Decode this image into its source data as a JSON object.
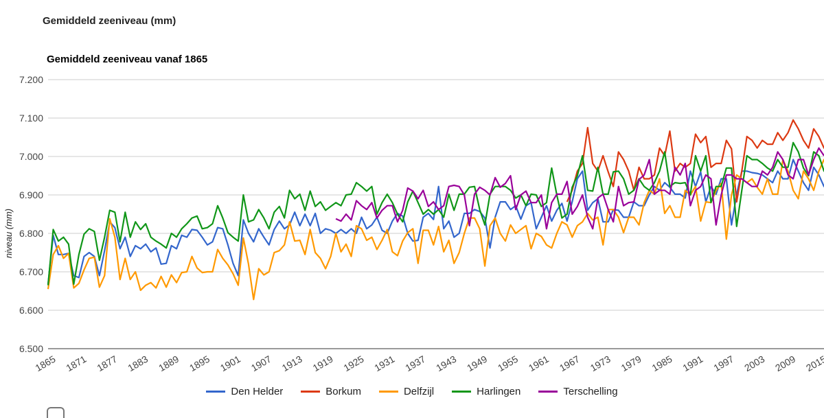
{
  "page": {
    "title": "Gemiddeld zeeniveau (mm)"
  },
  "chart_data": {
    "type": "line",
    "title": "Gemiddeld zeeniveau vanaf 1865",
    "xlabel": "",
    "ylabel": "niveau (mm)",
    "ylim": [
      6.5,
      7.2
    ],
    "xlim": [
      1865,
      2016
    ],
    "yticks": [
      "6.500",
      "6.600",
      "6.700",
      "6.800",
      "6.900",
      "7.000",
      "7.100",
      "7.200"
    ],
    "xticks": [
      "1865",
      "1871",
      "1877",
      "1883",
      "1889",
      "1895",
      "1901",
      "1907",
      "1913",
      "1919",
      "1925",
      "1931",
      "1937",
      "1943",
      "1949",
      "1955",
      "1961",
      "1967",
      "1973",
      "1979",
      "1985",
      "1991",
      "1997",
      "2003",
      "2009",
      "2015"
    ],
    "grid": true,
    "legend_position": "bottom",
    "series": [
      {
        "name": "Den Helder",
        "color": "#3366CC",
        "start": 1865,
        "values": [
          6.668,
          6.795,
          6.745,
          6.745,
          6.748,
          6.69,
          6.685,
          6.74,
          6.75,
          6.74,
          6.69,
          6.755,
          6.83,
          6.815,
          6.76,
          6.79,
          6.74,
          6.768,
          6.76,
          6.772,
          6.752,
          6.762,
          6.72,
          6.722,
          6.768,
          6.76,
          6.795,
          6.79,
          6.81,
          6.808,
          6.79,
          6.77,
          6.778,
          6.815,
          6.812,
          6.77,
          6.722,
          6.69,
          6.835,
          6.8,
          6.778,
          6.812,
          6.79,
          6.77,
          6.81,
          6.832,
          6.812,
          6.822,
          6.855,
          6.82,
          6.85,
          6.82,
          6.852,
          6.8,
          6.812,
          6.808,
          6.8,
          6.81,
          6.8,
          6.812,
          6.8,
          6.842,
          6.812,
          6.822,
          6.842,
          6.808,
          6.8,
          6.832,
          6.852,
          6.845,
          6.8,
          6.78,
          6.782,
          6.842,
          6.852,
          6.836,
          6.922,
          6.812,
          6.832,
          6.79,
          6.8,
          6.852,
          6.852,
          6.862,
          6.857,
          6.84,
          6.762,
          6.842,
          6.882,
          6.882,
          6.862,
          6.872,
          6.837,
          6.872,
          6.88,
          6.812,
          6.842,
          6.872,
          6.832,
          6.86,
          6.878,
          6.832,
          6.882,
          6.942,
          6.962,
          6.86,
          6.88,
          6.89,
          6.83,
          6.83,
          6.862,
          6.86,
          6.842,
          6.842,
          6.882,
          6.872,
          6.872,
          6.9,
          6.922,
          6.912,
          6.932,
          6.92,
          6.902,
          6.902,
          6.892,
          6.962,
          6.922,
          6.96,
          6.882,
          6.922,
          6.902,
          6.942,
          6.942,
          6.822,
          6.902,
          6.962,
          6.962,
          6.958,
          6.956,
          6.952,
          6.942,
          6.932,
          6.962,
          6.942,
          6.942,
          6.992,
          6.962,
          6.932,
          6.912,
          6.972,
          6.952,
          6.922,
          6.962,
          6.982,
          6.962
        ]
      },
      {
        "name": "Borkum",
        "color": "#DC3912",
        "start": 1966,
        "values": [
          6.882,
          6.912,
          6.962,
          6.982,
          7.075,
          6.982,
          6.962,
          7.002,
          6.96,
          6.922,
          7.012,
          6.992,
          6.962,
          6.912,
          6.972,
          6.942,
          6.942,
          6.952,
          7.022,
          7.002,
          7.066,
          6.962,
          6.982,
          6.972,
          6.982,
          7.058,
          7.036,
          7.052,
          6.972,
          6.982,
          6.982,
          7.042,
          7.02,
          6.882,
          6.962,
          7.052,
          7.042,
          7.022,
          7.042,
          7.032,
          7.032,
          7.062,
          7.042,
          7.062,
          7.095,
          7.072,
          7.042,
          7.022,
          7.072,
          7.052,
          7.022,
          7.062,
          7.102,
          7.075
        ]
      },
      {
        "name": "Delfzijl",
        "color": "#FF9900",
        "start": 1865,
        "values": [
          6.655,
          6.745,
          6.768,
          6.735,
          6.748,
          6.658,
          6.67,
          6.705,
          6.735,
          6.738,
          6.66,
          6.69,
          6.838,
          6.79,
          6.68,
          6.735,
          6.68,
          6.7,
          6.652,
          6.665,
          6.672,
          6.658,
          6.688,
          6.66,
          6.692,
          6.672,
          6.698,
          6.7,
          6.74,
          6.71,
          6.698,
          6.7,
          6.7,
          6.758,
          6.735,
          6.718,
          6.695,
          6.665,
          6.788,
          6.72,
          6.628,
          6.708,
          6.692,
          6.7,
          6.75,
          6.755,
          6.77,
          6.83,
          6.78,
          6.782,
          6.745,
          6.81,
          6.75,
          6.735,
          6.708,
          6.74,
          6.8,
          6.752,
          6.772,
          6.74,
          6.82,
          6.812,
          6.782,
          6.79,
          6.758,
          6.782,
          6.81,
          6.752,
          6.742,
          6.78,
          6.802,
          6.812,
          6.722,
          6.808,
          6.808,
          6.77,
          6.818,
          6.752,
          6.782,
          6.722,
          6.75,
          6.8,
          6.84,
          6.84,
          6.812,
          6.715,
          6.82,
          6.84,
          6.8,
          6.78,
          6.822,
          6.8,
          6.81,
          6.82,
          6.76,
          6.8,
          6.792,
          6.77,
          6.762,
          6.8,
          6.83,
          6.822,
          6.79,
          6.82,
          6.83,
          6.852,
          6.835,
          6.842,
          6.77,
          6.862,
          6.862,
          6.842,
          6.802,
          6.842,
          6.842,
          6.822,
          6.88,
          6.912,
          6.902,
          6.942,
          6.852,
          6.872,
          6.842,
          6.842,
          6.912,
          6.9,
          6.922,
          6.832,
          6.882,
          6.88,
          6.912,
          6.93,
          6.785,
          6.9,
          6.952,
          6.942,
          6.932,
          6.942,
          6.92,
          6.902,
          6.942,
          6.902,
          6.902,
          6.992,
          6.962,
          6.912,
          6.89,
          6.962,
          6.942,
          6.912,
          6.962,
          6.992,
          6.972
        ]
      },
      {
        "name": "Harlingen",
        "color": "#109618",
        "start": 1865,
        "values": [
          6.665,
          6.81,
          6.78,
          6.79,
          6.772,
          6.668,
          6.745,
          6.798,
          6.812,
          6.805,
          6.73,
          6.79,
          6.86,
          6.855,
          6.778,
          6.855,
          6.79,
          6.83,
          6.81,
          6.825,
          6.79,
          6.78,
          6.772,
          6.762,
          6.8,
          6.79,
          6.812,
          6.825,
          6.84,
          6.845,
          6.812,
          6.815,
          6.825,
          6.872,
          6.84,
          6.802,
          6.79,
          6.78,
          6.9,
          6.83,
          6.835,
          6.862,
          6.84,
          6.812,
          6.855,
          6.87,
          6.84,
          6.912,
          6.89,
          6.902,
          6.86,
          6.91,
          6.87,
          6.882,
          6.86,
          6.87,
          6.88,
          6.872,
          6.9,
          6.902,
          6.932,
          6.922,
          6.91,
          6.922,
          6.85,
          6.88,
          6.902,
          6.88,
          6.85,
          6.83,
          6.882,
          6.91,
          6.88,
          6.85,
          6.862,
          6.85,
          6.862,
          6.842,
          6.902,
          6.86,
          6.902,
          6.902,
          6.92,
          6.922,
          6.862,
          6.822,
          6.902,
          6.922,
          6.922,
          6.922,
          6.912,
          6.892,
          6.9,
          6.872,
          6.902,
          6.9,
          6.87,
          6.88,
          6.97,
          6.9,
          6.84,
          6.85,
          6.92,
          6.95,
          7.002,
          6.912,
          6.91,
          6.972,
          6.902,
          6.902,
          6.96,
          6.962,
          6.942,
          6.902,
          6.912,
          6.942,
          6.922,
          6.912,
          6.932,
          6.962,
          7.012,
          6.922,
          6.932,
          6.93,
          6.932,
          6.9,
          7.002,
          6.962,
          7.002,
          6.88,
          6.922,
          6.922,
          6.97,
          6.97,
          6.818,
          6.912,
          7.002,
          6.992,
          6.992,
          6.982,
          6.97,
          6.962,
          6.992,
          6.972,
          6.972,
          7.036,
          7.012,
          6.97,
          6.95,
          7.012,
          7.002,
          6.962,
          7.012,
          7.052,
          7.022
        ]
      },
      {
        "name": "Terschelling",
        "color": "#990099",
        "start": 1921,
        "values": [
          6.838,
          6.832,
          6.85,
          6.835,
          6.885,
          6.872,
          6.862,
          6.88,
          6.84,
          6.86,
          6.872,
          6.872,
          6.83,
          6.86,
          6.918,
          6.91,
          6.89,
          6.912,
          6.87,
          6.882,
          6.862,
          6.872,
          6.922,
          6.925,
          6.922,
          6.9,
          6.82,
          6.902,
          6.92,
          6.912,
          6.9,
          6.945,
          6.92,
          6.93,
          6.95,
          6.862,
          6.9,
          6.91,
          6.88,
          6.88,
          6.9,
          6.812,
          6.88,
          6.902,
          6.902,
          6.935,
          6.85,
          6.87,
          6.9,
          6.842,
          6.812,
          6.892,
          6.902,
          6.862,
          6.83,
          6.922,
          6.872,
          6.88,
          6.882,
          6.94,
          6.952,
          6.992,
          6.902,
          6.912,
          6.912,
          6.902,
          6.972,
          6.952,
          6.982,
          6.872,
          6.912,
          6.922,
          6.952,
          6.942,
          6.822,
          6.9,
          6.952,
          6.952,
          6.942,
          6.942,
          6.932,
          6.922,
          6.922,
          6.962,
          6.952,
          6.972,
          7.012,
          6.992,
          6.952,
          6.942,
          6.992,
          6.992,
          6.952,
          6.992,
          7.022,
          7.002
        ]
      }
    ]
  }
}
